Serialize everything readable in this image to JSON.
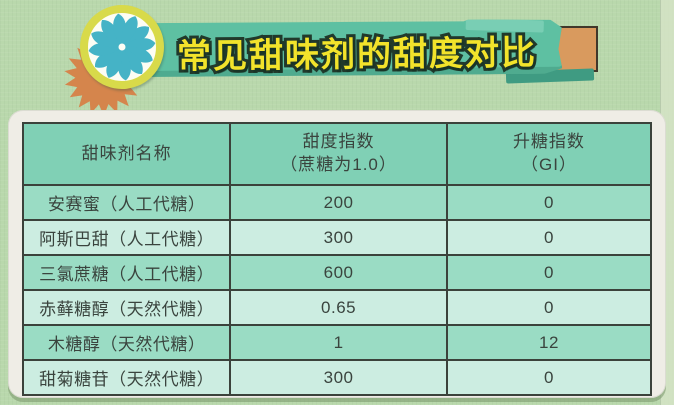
{
  "header": {
    "title": "常见甜味剂的甜度对比"
  },
  "icons": {
    "candy": "candy-pinwheel-swirl",
    "starburst": "orange-starburst-badge"
  },
  "table": {
    "columns": [
      {
        "line1": "甜味剂名称",
        "line2": ""
      },
      {
        "line1": "甜度指数",
        "line2": "（蔗糖为1.0）"
      },
      {
        "line1": "升糖指数",
        "line2": "（GI）"
      }
    ],
    "rows": [
      {
        "name": "安赛蜜（人工代糖）",
        "sweetness": "200",
        "gi": "0"
      },
      {
        "name": "阿斯巴甜（人工代糖）",
        "sweetness": "300",
        "gi": "0"
      },
      {
        "name": "三氯蔗糖（人工代糖）",
        "sweetness": "600",
        "gi": "0"
      },
      {
        "name": "赤藓糖醇（天然代糖）",
        "sweetness": "0.65",
        "gi": "0"
      },
      {
        "name": "木糖醇（天然代糖）",
        "sweetness": "1",
        "gi": "12"
      },
      {
        "name": "甜菊糖苷（天然代糖）",
        "sweetness": "300",
        "gi": "0"
      }
    ]
  },
  "chart_data": {
    "type": "table",
    "title": "常见甜味剂的甜度对比",
    "columns": [
      "甜味剂名称",
      "甜度指数（蔗糖为1.0）",
      "升糖指数（GI）"
    ],
    "rows": [
      [
        "安赛蜜（人工代糖）",
        "200",
        "0"
      ],
      [
        "阿斯巴甜（人工代糖）",
        "300",
        "0"
      ],
      [
        "三氯蔗糖（人工代糖）",
        "600",
        "0"
      ],
      [
        "赤藓糖醇（天然代糖）",
        "0.65",
        "0"
      ],
      [
        "木糖醇（天然代糖）",
        "1",
        "12"
      ],
      [
        "甜菊糖苷（天然代糖）",
        "300",
        "0"
      ]
    ]
  },
  "colors": {
    "background": "#b9d8ac",
    "banner": "#5ec0a2",
    "title_fill": "#f2e32b",
    "title_outline": "#21392b",
    "card": "#efede6",
    "header_row": "#80d0b5",
    "row_dark": "#9adcc4",
    "row_light": "#ccede1",
    "table_border": "#3b423b",
    "tab_orange": "#d99a5e",
    "starburst_orange": "#d5854c",
    "candy_ring": "#d8da4a",
    "candy_swirl": "#45b3c6"
  }
}
